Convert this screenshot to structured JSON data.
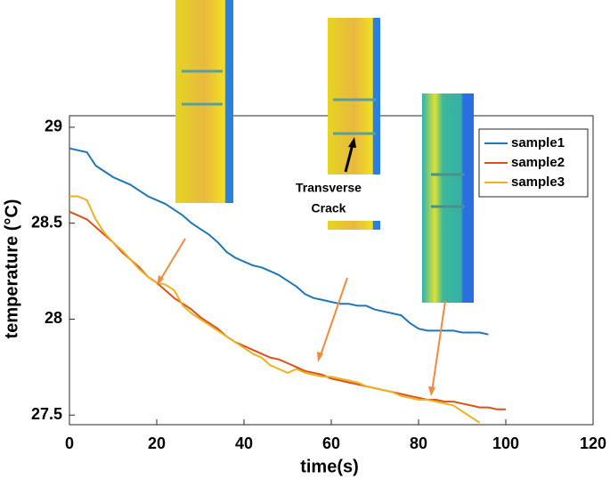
{
  "chart_data": {
    "type": "line",
    "xlabel": "time(s)",
    "ylabel": "temperature (°C)",
    "annotations": [
      "Transverse",
      "Crack"
    ],
    "x": [
      0,
      2,
      4,
      6,
      8,
      10,
      12,
      14,
      16,
      18,
      20,
      22,
      24,
      26,
      28,
      30,
      32,
      34,
      36,
      38,
      40,
      42,
      44,
      46,
      48,
      50,
      52,
      54,
      56,
      58,
      60,
      62,
      64,
      66,
      68,
      70,
      72,
      74,
      76,
      78,
      80,
      82,
      84,
      86,
      88,
      90,
      92,
      94,
      96,
      98,
      100
    ],
    "series": [
      {
        "name": "sample1",
        "color": "#1f77b4",
        "values": [
          28.89,
          28.88,
          28.87,
          28.8,
          28.77,
          28.74,
          28.72,
          28.7,
          28.67,
          28.64,
          28.62,
          28.6,
          28.57,
          28.54,
          28.5,
          28.47,
          28.44,
          28.4,
          28.35,
          28.32,
          28.3,
          28.28,
          28.27,
          28.25,
          28.23,
          28.2,
          28.17,
          28.13,
          28.11,
          28.1,
          28.09,
          28.08,
          28.08,
          28.07,
          28.07,
          28.05,
          28.04,
          28.03,
          28.02,
          27.98,
          27.95,
          27.94,
          27.94,
          27.94,
          27.94,
          27.93,
          27.93,
          27.93,
          27.92,
          null,
          null
        ]
      },
      {
        "name": "sample2",
        "color": "#d95319",
        "values": [
          28.56,
          28.54,
          28.52,
          28.48,
          28.44,
          28.4,
          28.35,
          28.31,
          28.27,
          28.22,
          28.19,
          28.15,
          28.11,
          28.08,
          28.05,
          28.01,
          27.98,
          27.95,
          27.91,
          27.88,
          27.86,
          27.84,
          27.82,
          27.8,
          27.79,
          27.77,
          27.75,
          27.73,
          27.72,
          27.71,
          27.69,
          27.68,
          27.67,
          27.66,
          27.65,
          27.64,
          27.63,
          27.62,
          27.61,
          27.6,
          27.59,
          27.58,
          27.58,
          27.57,
          27.57,
          27.56,
          27.55,
          27.54,
          27.54,
          27.53,
          27.53
        ]
      },
      {
        "name": "sample3",
        "color": "#edb120",
        "values": [
          28.64,
          28.64,
          28.62,
          28.52,
          28.45,
          28.4,
          28.36,
          28.31,
          28.26,
          28.22,
          28.19,
          28.18,
          28.15,
          28.07,
          28.03,
          28.0,
          27.97,
          27.94,
          27.91,
          27.88,
          27.85,
          27.82,
          27.8,
          27.76,
          27.74,
          27.72,
          27.74,
          27.72,
          27.71,
          27.7,
          27.7,
          27.69,
          27.68,
          27.67,
          27.65,
          27.64,
          27.63,
          27.62,
          27.6,
          27.59,
          27.58,
          27.58,
          27.57,
          27.56,
          27.55,
          27.52,
          27.49,
          27.46,
          null,
          null,
          null
        ]
      }
    ],
    "xlim": [
      0,
      120
    ],
    "xticks": [
      0,
      20,
      40,
      60,
      80,
      100,
      120
    ],
    "ylim": [
      27.45,
      29.06
    ],
    "yticks": [
      27.5,
      28,
      28.5,
      29
    ],
    "legend": "upper right"
  }
}
